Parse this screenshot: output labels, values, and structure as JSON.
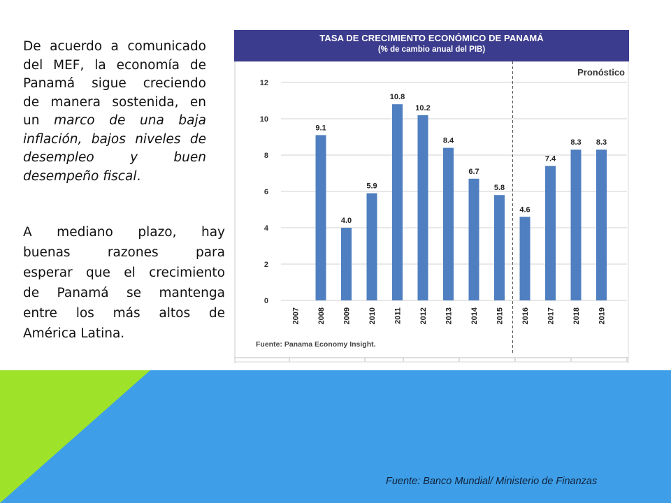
{
  "left_text": {
    "p1_lines": [
      {
        "text": "De acuerdo a comunicado",
        "italic": false
      },
      {
        "text": "del MEF, la economía de",
        "italic": false
      },
      {
        "text": "Panamá sigue creciendo",
        "italic": false
      },
      {
        "text": "de manera sostenida, en",
        "italic": false
      },
      {
        "text": "un ",
        "italic": false,
        "cont": "marco de una baja"
      },
      {
        "text": "inflación, bajos niveles de",
        "italic": true
      },
      {
        "text": "desempleo y buen",
        "italic": true
      },
      {
        "text": "desempeño fiscal",
        "italic": true,
        "tail": "."
      }
    ],
    "p2_lines": [
      "A mediano plazo, hay",
      "buenas razones para",
      "esperar que el crecimiento",
      "de Panamá se mantenga",
      "entre los más altos de",
      "América Latina."
    ]
  },
  "chart_data": {
    "type": "bar",
    "title": "TASA DE CRECIMIENTO ECONÓMICO DE PANAMÁ",
    "subtitle": "(% de cambio anual del PIB)",
    "categories": [
      "2007",
      "2008",
      "2009",
      "2010",
      "2011",
      "2012",
      "2013",
      "2014",
      "2015",
      "2016",
      "2017",
      "2018",
      "2019"
    ],
    "values": [
      null,
      9.1,
      4.0,
      5.9,
      10.8,
      10.2,
      8.4,
      6.7,
      5.8,
      4.6,
      7.4,
      8.3,
      8.3
    ],
    "value_labels": [
      "",
      "9.1",
      "4.0",
      "5.9",
      "10.8",
      "10.2",
      "8.4",
      "6.7",
      "5.8",
      "4.6",
      "7.4",
      "8.3",
      "8.3"
    ],
    "yticks": [
      "0",
      "2",
      "4",
      "6",
      "8",
      "10",
      "12"
    ],
    "ylim": [
      0,
      12
    ],
    "forecast_label": "Pronóstico",
    "forecast_start_category": "2016",
    "source": "Fuente: Panama Economy Insight.",
    "bar_color": "#4f7fc0",
    "grid": true
  },
  "colors": {
    "header_bg": "#3c3c8e",
    "band_blue": "#3e9fe8",
    "band_green": "#9ee22a"
  },
  "footer": {
    "source": "Fuente: Banco Mundial/ Ministerio de Finanzas"
  }
}
